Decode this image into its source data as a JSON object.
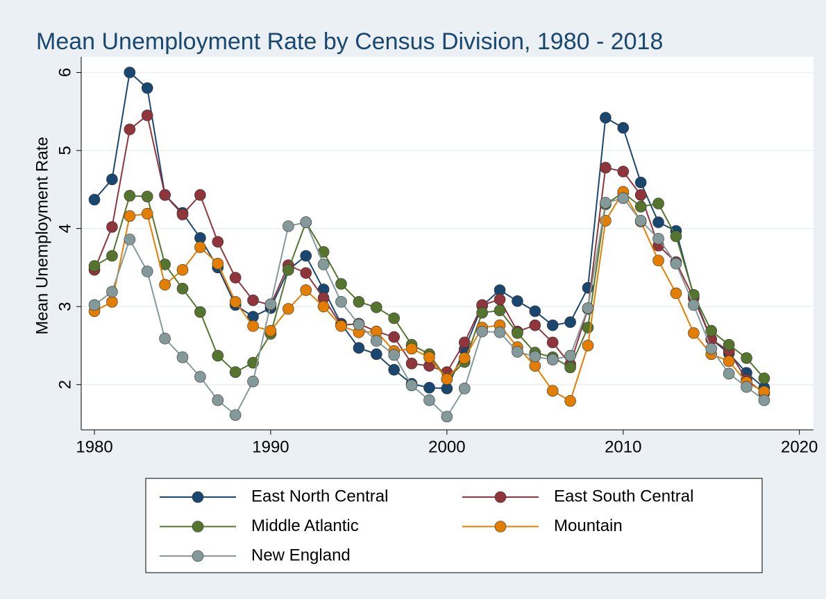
{
  "chart_data": {
    "type": "line",
    "title": "Mean Unemployment Rate by Census Division, 1980 - 2018",
    "y_label": "Mean Unemployment Rate",
    "x": [
      1980,
      1981,
      1982,
      1983,
      1984,
      1985,
      1986,
      1987,
      1988,
      1989,
      1990,
      1991,
      1992,
      1993,
      1994,
      1995,
      1996,
      1997,
      1998,
      1999,
      2000,
      2001,
      2002,
      2003,
      2004,
      2005,
      2006,
      2007,
      2008,
      2009,
      2010,
      2011,
      2012,
      2013,
      2014,
      2015,
      2016,
      2017,
      2018
    ],
    "series": [
      {
        "name": "East North Central",
        "color": "#1a476f",
        "values": [
          4.37,
          4.63,
          6.0,
          5.8,
          4.43,
          4.2,
          3.88,
          3.5,
          3.02,
          2.87,
          2.98,
          3.47,
          3.65,
          3.22,
          2.78,
          2.47,
          2.39,
          2.19,
          2.01,
          1.96,
          1.95,
          2.45,
          3.01,
          3.21,
          3.07,
          2.94,
          2.76,
          2.8,
          3.24,
          5.42,
          5.29,
          4.59,
          4.08,
          3.97,
          3.14,
          2.58,
          2.4,
          2.15,
          1.96
        ]
      },
      {
        "name": "East South Central",
        "color": "#90353b",
        "values": [
          3.47,
          4.02,
          5.27,
          5.45,
          4.43,
          4.18,
          4.43,
          3.83,
          3.37,
          3.08,
          3.02,
          3.53,
          3.43,
          3.11,
          2.76,
          2.78,
          2.68,
          2.61,
          2.27,
          2.24,
          2.16,
          2.54,
          3.02,
          3.09,
          2.68,
          2.76,
          2.54,
          2.26,
          2.97,
          4.78,
          4.73,
          4.43,
          3.78,
          3.57,
          3.11,
          2.58,
          2.43,
          2.06,
          1.89
        ]
      },
      {
        "name": "Middle Atlantic",
        "color": "#55752f",
        "values": [
          3.52,
          3.65,
          4.42,
          4.41,
          3.54,
          3.23,
          2.93,
          2.37,
          2.16,
          2.28,
          2.65,
          3.47,
          4.08,
          3.7,
          3.29,
          3.06,
          2.99,
          2.85,
          2.51,
          2.39,
          2.07,
          2.29,
          2.92,
          2.95,
          2.66,
          2.41,
          2.35,
          2.22,
          2.73,
          4.31,
          4.46,
          4.28,
          4.32,
          3.9,
          3.15,
          2.69,
          2.51,
          2.34,
          2.08
        ]
      },
      {
        "name": "Mountain",
        "color": "#e37e00",
        "values": [
          2.94,
          3.06,
          4.16,
          4.19,
          3.28,
          3.47,
          3.76,
          3.55,
          3.06,
          2.75,
          2.69,
          2.97,
          3.21,
          3.0,
          2.75,
          2.67,
          2.68,
          2.43,
          2.46,
          2.35,
          2.07,
          2.34,
          2.73,
          2.76,
          2.48,
          2.24,
          1.92,
          1.79,
          2.5,
          4.1,
          4.47,
          4.09,
          3.59,
          3.17,
          2.66,
          2.39,
          2.3,
          2.03,
          1.91
        ]
      },
      {
        "name": "New England",
        "color": "#849a9a",
        "values": [
          3.02,
          3.19,
          3.86,
          3.45,
          2.59,
          2.35,
          2.1,
          1.8,
          1.61,
          2.04,
          3.03,
          4.03,
          4.08,
          3.54,
          3.06,
          2.77,
          2.56,
          2.38,
          1.99,
          1.8,
          1.59,
          1.95,
          2.68,
          2.67,
          2.42,
          2.36,
          2.32,
          2.37,
          2.98,
          4.33,
          4.39,
          4.1,
          3.87,
          3.55,
          3.02,
          2.46,
          2.14,
          1.97,
          1.8
        ]
      }
    ],
    "xlim": [
      1979.25,
      2020.8
    ],
    "xticks": [
      1980,
      1990,
      2000,
      2010,
      2020
    ],
    "ylim": [
      1.42,
      6.2
    ],
    "yticks": [
      2,
      3,
      4,
      5,
      6
    ],
    "grid": true,
    "legend": "bottom"
  }
}
